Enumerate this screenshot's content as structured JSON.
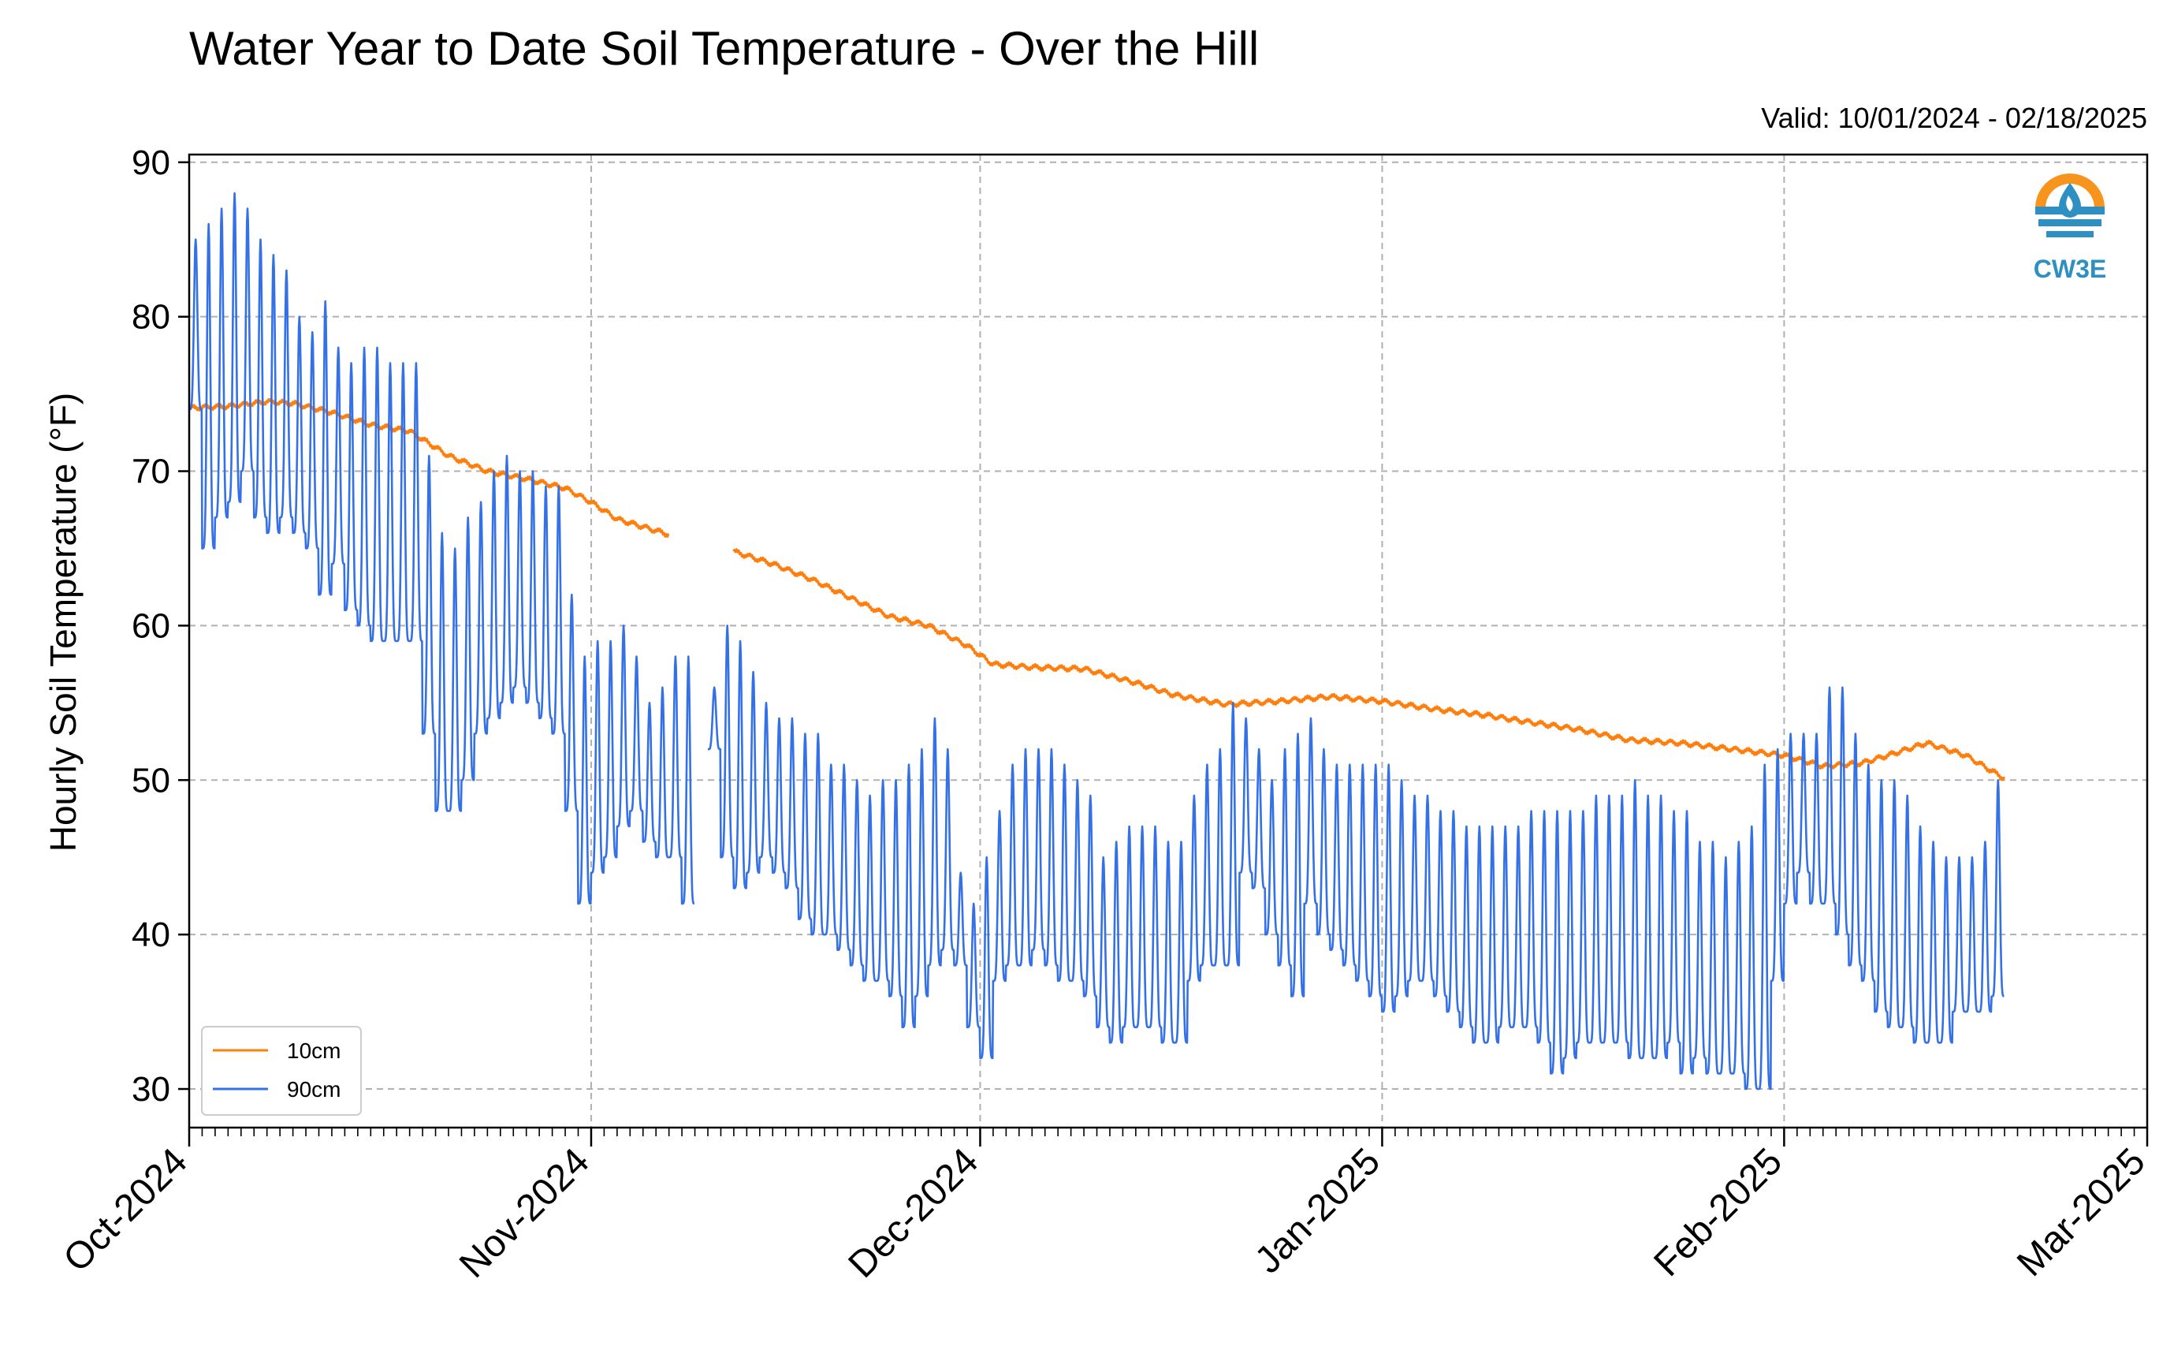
{
  "chart_data": {
    "type": "line",
    "title": "Water Year to Date Soil Temperature - Over the Hill",
    "subtitle": "Valid: 10/01/2024 - 02/18/2025",
    "xlabel": "",
    "ylabel": "Hourly Soil Temperature (°F)",
    "xlim": [
      "2024-10-01",
      "2025-03-01"
    ],
    "ylim": [
      27.5,
      90.5
    ],
    "x_ticks": [
      "2024-10-01",
      "2024-11-01",
      "2024-12-01",
      "2025-01-01",
      "2025-02-01",
      "2025-03-01"
    ],
    "x_tick_labels": [
      "Oct-2024",
      "Nov-2024",
      "Dec-2024",
      "Jan-2025",
      "Feb-2025",
      "Mar-2025"
    ],
    "y_ticks": [
      30,
      40,
      50,
      60,
      70,
      80,
      90
    ],
    "grid": true,
    "legend_position": "bottom-left",
    "logo_text": "CW3E",
    "series": [
      {
        "name": "10cm",
        "color": "#ff7f0e",
        "x": [
          "2024-10-01",
          "2024-10-04",
          "2024-10-07",
          "2024-10-09",
          "2024-10-12",
          "2024-10-15",
          "2024-10-18",
          "2024-10-21",
          "2024-10-24",
          "2024-10-27",
          "2024-10-30",
          "2024-11-01",
          "2024-11-03",
          "2024-11-05",
          "2024-11-07",
          "2024-11-09",
          "2024-11-12",
          "2024-11-15",
          "2024-11-18",
          "2024-11-21",
          "2024-11-24",
          "2024-11-27",
          "2024-11-30",
          "2024-12-02",
          "2024-12-05",
          "2024-12-09",
          "2024-12-13",
          "2024-12-16",
          "2024-12-20",
          "2024-12-24",
          "2024-12-28",
          "2025-01-01",
          "2025-01-05",
          "2025-01-09",
          "2025-01-12",
          "2025-01-16",
          "2025-01-20",
          "2025-01-24",
          "2025-01-28",
          "2025-02-01",
          "2025-02-04",
          "2025-02-07",
          "2025-02-09",
          "2025-02-12",
          "2025-02-15",
          "2025-02-18"
        ],
        "y": [
          74.1,
          74.2,
          74.5,
          74.4,
          73.8,
          73.0,
          72.6,
          71.0,
          70.0,
          69.5,
          68.9,
          68.0,
          66.9,
          66.4,
          65.9,
          null,
          64.8,
          64.0,
          63.0,
          61.8,
          60.6,
          60.0,
          58.7,
          57.5,
          57.3,
          57.2,
          56.3,
          55.5,
          54.9,
          55.1,
          55.4,
          55.1,
          54.6,
          54.2,
          53.8,
          53.3,
          52.6,
          52.4,
          52.0,
          51.6,
          50.9,
          51.1,
          51.6,
          52.4,
          51.6,
          50.1
        ]
      },
      {
        "name": "90cm",
        "color": "#3470e6",
        "x": [
          "2024-10-01",
          "2024-10-02",
          "2024-10-03",
          "2024-10-04",
          "2024-10-05",
          "2024-10-06",
          "2024-10-07",
          "2024-10-08",
          "2024-10-09",
          "2024-10-10",
          "2024-10-11",
          "2024-10-12",
          "2024-10-13",
          "2024-10-14",
          "2024-10-15",
          "2024-10-16",
          "2024-10-17",
          "2024-10-18",
          "2024-10-19",
          "2024-10-20",
          "2024-10-21",
          "2024-10-22",
          "2024-10-23",
          "2024-10-24",
          "2024-10-25",
          "2024-10-26",
          "2024-10-27",
          "2024-10-28",
          "2024-10-29",
          "2024-10-30",
          "2024-10-31",
          "2024-11-01",
          "2024-11-02",
          "2024-11-03",
          "2024-11-04",
          "2024-11-05",
          "2024-11-06",
          "2024-11-07",
          "2024-11-08",
          "2024-11-09",
          "2024-11-10",
          "2024-11-11",
          "2024-11-12",
          "2024-11-13",
          "2024-11-14",
          "2024-11-15",
          "2024-11-16",
          "2024-11-17",
          "2024-11-18",
          "2024-11-19",
          "2024-11-20",
          "2024-11-21",
          "2024-11-22",
          "2024-11-23",
          "2024-11-24",
          "2024-11-25",
          "2024-11-26",
          "2024-11-27",
          "2024-11-28",
          "2024-11-29",
          "2024-11-30",
          "2024-12-01",
          "2024-12-02",
          "2024-12-03",
          "2024-12-04",
          "2024-12-05",
          "2024-12-06",
          "2024-12-07",
          "2024-12-08",
          "2024-12-09",
          "2024-12-10",
          "2024-12-11",
          "2024-12-12",
          "2024-12-13",
          "2024-12-14",
          "2024-12-15",
          "2024-12-16",
          "2024-12-17",
          "2024-12-18",
          "2024-12-19",
          "2024-12-20",
          "2024-12-21",
          "2024-12-22",
          "2024-12-23",
          "2024-12-24",
          "2024-12-25",
          "2024-12-26",
          "2024-12-27",
          "2024-12-28",
          "2024-12-29",
          "2024-12-30",
          "2024-12-31",
          "2025-01-01",
          "2025-01-02",
          "2025-01-03",
          "2025-01-04",
          "2025-01-05",
          "2025-01-06",
          "2025-01-07",
          "2025-01-08",
          "2025-01-09",
          "2025-01-10",
          "2025-01-11",
          "2025-01-12",
          "2025-01-13",
          "2025-01-14",
          "2025-01-15",
          "2025-01-16",
          "2025-01-17",
          "2025-01-18",
          "2025-01-19",
          "2025-01-20",
          "2025-01-21",
          "2025-01-22",
          "2025-01-23",
          "2025-01-24",
          "2025-01-25",
          "2025-01-26",
          "2025-01-27",
          "2025-01-28",
          "2025-01-29",
          "2025-01-30",
          "2025-01-31",
          "2025-02-01",
          "2025-02-02",
          "2025-02-03",
          "2025-02-04",
          "2025-02-05",
          "2025-02-06",
          "2025-02-07",
          "2025-02-08",
          "2025-02-09",
          "2025-02-10",
          "2025-02-11",
          "2025-02-12",
          "2025-02-13",
          "2025-02-14",
          "2025-02-15",
          "2025-02-16",
          "2025-02-17",
          "2025-02-18"
        ],
        "daily_min": [
          74,
          65,
          67,
          68,
          70,
          67,
          66,
          67,
          66,
          65,
          62,
          64,
          61,
          60,
          59,
          59,
          59,
          59,
          53,
          48,
          48,
          50,
          53,
          54,
          55,
          56,
          55,
          54,
          53,
          48,
          42,
          44,
          45,
          47,
          48,
          46,
          45,
          45,
          42,
          null,
          52,
          45,
          43,
          44,
          45,
          44,
          43,
          41,
          40,
          40,
          39,
          38,
          37,
          37,
          36,
          34,
          36,
          38,
          39,
          38,
          34,
          32,
          37,
          38,
          38,
          39,
          38,
          37,
          37,
          36,
          34,
          33,
          34,
          34,
          34,
          33,
          33,
          37,
          38,
          38,
          38,
          44,
          43,
          40,
          38,
          36,
          42,
          40,
          39,
          38,
          37,
          36,
          35,
          36,
          37,
          37,
          36,
          35,
          34,
          33,
          33,
          34,
          34,
          34,
          33,
          31,
          32,
          33,
          33,
          33,
          33,
          32,
          32,
          32,
          33,
          31,
          32,
          31,
          31,
          31,
          30,
          30,
          37,
          42,
          44,
          42,
          42,
          40,
          38,
          37,
          35,
          34,
          34,
          33,
          33,
          33,
          35,
          35,
          35,
          36
        ],
        "daily_max": [
          85,
          86,
          87,
          88,
          87,
          85,
          84,
          83,
          80,
          79,
          81,
          78,
          77,
          78,
          78,
          77,
          77,
          77,
          71,
          66,
          65,
          67,
          68,
          70,
          71,
          70,
          70,
          69,
          69,
          62,
          58,
          59,
          59,
          60,
          58,
          55,
          56,
          58,
          58,
          null,
          56,
          60,
          59,
          57,
          55,
          54,
          54,
          53,
          53,
          51,
          51,
          50,
          49,
          50,
          50,
          51,
          52,
          54,
          52,
          44,
          42,
          45,
          48,
          51,
          52,
          52,
          52,
          51,
          50,
          49,
          45,
          46,
          47,
          47,
          47,
          46,
          46,
          49,
          51,
          52,
          55,
          54,
          52,
          50,
          52,
          53,
          54,
          52,
          51,
          51,
          51,
          51,
          51,
          50,
          49,
          49,
          48,
          48,
          47,
          47,
          47,
          47,
          47,
          48,
          48,
          48,
          48,
          48,
          49,
          49,
          49,
          50,
          49,
          49,
          48,
          48,
          46,
          46,
          45,
          46,
          47,
          51,
          52,
          53,
          53,
          53,
          56,
          56,
          53,
          51,
          50,
          50,
          49,
          47,
          46,
          45,
          45,
          45,
          46,
          50
        ]
      }
    ]
  }
}
